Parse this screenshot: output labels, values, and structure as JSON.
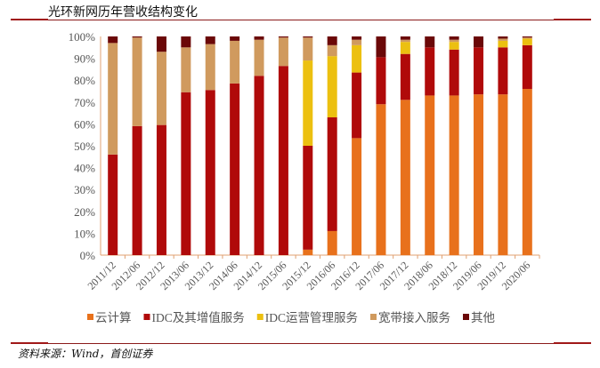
{
  "title": "光环新网历年营收结构变化",
  "source": "资料来源：Wind，首创证券",
  "chart_data": {
    "type": "bar",
    "stacked": true,
    "percent": true,
    "title": "",
    "xlabel": "",
    "ylabel": "",
    "ylim": [
      0,
      100
    ],
    "yticks": [
      "0%",
      "10%",
      "20%",
      "30%",
      "40%",
      "50%",
      "60%",
      "70%",
      "80%",
      "90%",
      "100%"
    ],
    "grid": false,
    "legend_position": "bottom",
    "categories": [
      "2011/12",
      "2012/06",
      "2012/12",
      "2013/06",
      "2013/12",
      "2014/06",
      "2014/12",
      "2015/06",
      "2015/12",
      "2016/06",
      "2016/12",
      "2017/06",
      "2017/12",
      "2018/06",
      "2018/12",
      "2019/06",
      "2019/12",
      "2020/06"
    ],
    "series": [
      {
        "name": "云计算",
        "color": "#e8711c",
        "values": [
          0,
          0,
          0,
          0,
          0,
          0,
          0,
          0,
          2.5,
          11,
          53.5,
          69,
          71,
          73,
          73,
          73.5,
          73.5,
          76
        ]
      },
      {
        "name": "IDC及其增值服务",
        "color": "#b00a0a",
        "values": [
          46,
          59,
          59.5,
          74.5,
          75.5,
          78.5,
          82,
          86.5,
          47.5,
          52,
          30,
          21.5,
          21,
          22,
          21,
          21.5,
          21.5,
          20
        ]
      },
      {
        "name": "IDC运营管理服务",
        "color": "#ecc010",
        "values": [
          0,
          0,
          0,
          0,
          0,
          0,
          0,
          0,
          39,
          28,
          12.5,
          0,
          5.5,
          0,
          3.5,
          0,
          3,
          3
        ]
      },
      {
        "name": "宽带接入服务",
        "color": "#d09a5e",
        "values": [
          51,
          40.5,
          33.5,
          20.5,
          21,
          19.5,
          16.5,
          13,
          10.5,
          5,
          2.5,
          0,
          1,
          0,
          1,
          0,
          1,
          0.5
        ]
      },
      {
        "name": "其他",
        "color": "#6b0808",
        "values": [
          3,
          0.5,
          7,
          5,
          3.5,
          2,
          1.5,
          0.5,
          0.5,
          4,
          1.5,
          9.5,
          1.5,
          5,
          1.5,
          5,
          1,
          0.5
        ]
      }
    ]
  }
}
